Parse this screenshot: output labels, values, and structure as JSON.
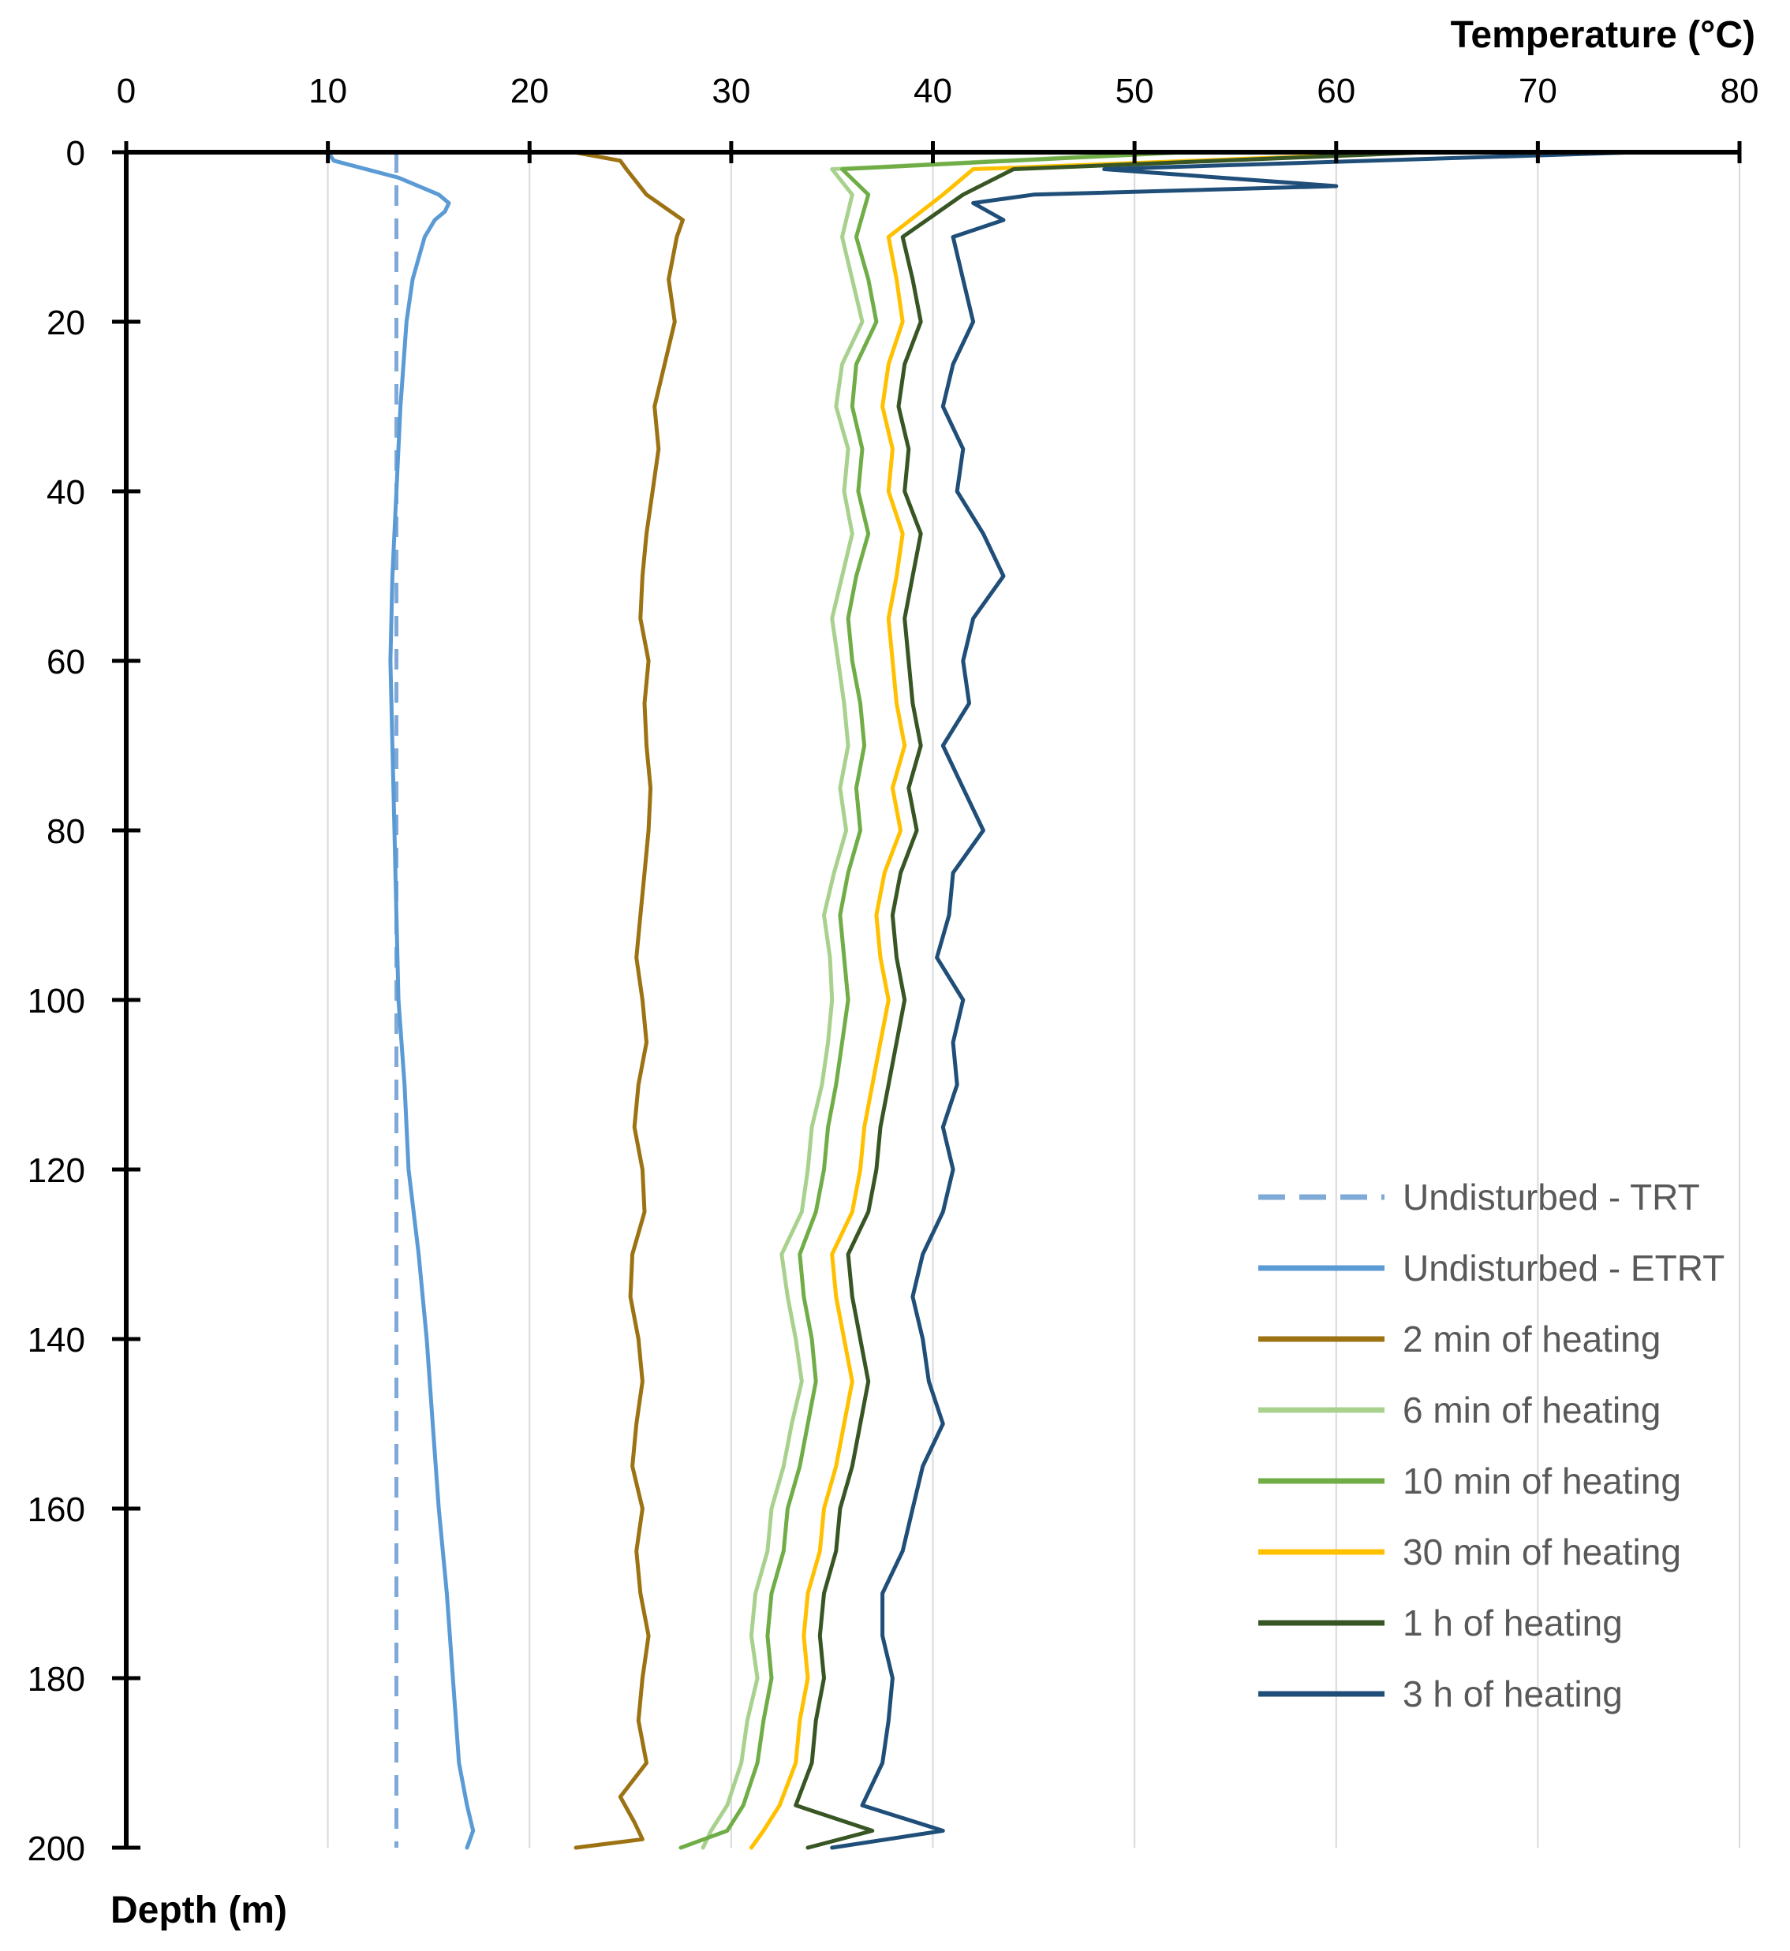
{
  "chart_data": {
    "type": "line",
    "orientation": "depth-profile",
    "xlabel": "Temperature (°C)",
    "ylabel": "Depth (m)",
    "xlim": [
      0,
      80
    ],
    "ylim": [
      0,
      200
    ],
    "x_ticks": [
      0,
      10,
      20,
      30,
      40,
      50,
      60,
      70,
      80
    ],
    "y_ticks": [
      0,
      20,
      40,
      60,
      80,
      100,
      120,
      140,
      160,
      180,
      200
    ],
    "grid": "vertical",
    "legend_position": "bottom-right",
    "series": [
      {
        "name": "Undisturbed - TRT",
        "color": "#7FA9D6",
        "dash": "dashed",
        "depth": [
          0,
          200
        ],
        "temperature": [
          13.4,
          13.4
        ]
      },
      {
        "name": "Undisturbed - ETRT",
        "color": "#5B9BD5",
        "dash": "solid",
        "depth": [
          0,
          1,
          3,
          5,
          6,
          7,
          8,
          10,
          15,
          20,
          30,
          40,
          50,
          60,
          70,
          80,
          90,
          100,
          110,
          120,
          130,
          140,
          150,
          160,
          170,
          180,
          190,
          195,
          198,
          200
        ],
        "temperature": [
          10.0,
          10.3,
          13.5,
          15.5,
          16.0,
          15.8,
          15.3,
          14.8,
          14.2,
          13.9,
          13.6,
          13.4,
          13.2,
          13.1,
          13.2,
          13.3,
          13.4,
          13.5,
          13.8,
          14.0,
          14.5,
          14.9,
          15.2,
          15.5,
          15.9,
          16.2,
          16.5,
          16.9,
          17.2,
          16.9
        ]
      },
      {
        "name": "2 min of heating",
        "color": "#9C7212",
        "dash": "solid",
        "depth": [
          0,
          1,
          2,
          5,
          8,
          10,
          15,
          20,
          25,
          30,
          35,
          40,
          45,
          50,
          55,
          60,
          65,
          70,
          75,
          80,
          85,
          90,
          95,
          100,
          105,
          110,
          115,
          120,
          125,
          130,
          135,
          140,
          145,
          150,
          155,
          160,
          165,
          170,
          175,
          180,
          185,
          190,
          194,
          197,
          199,
          200
        ],
        "temperature": [
          22.2,
          24.5,
          24.8,
          25.8,
          27.6,
          27.3,
          26.9,
          27.2,
          26.7,
          26.2,
          26.4,
          26.1,
          25.8,
          25.6,
          25.5,
          25.9,
          25.7,
          25.8,
          26.0,
          25.9,
          25.7,
          25.5,
          25.3,
          25.6,
          25.8,
          25.4,
          25.2,
          25.6,
          25.7,
          25.1,
          25.0,
          25.4,
          25.6,
          25.3,
          25.1,
          25.6,
          25.3,
          25.5,
          25.9,
          25.6,
          25.4,
          25.8,
          24.5,
          25.2,
          25.6,
          22.3
        ]
      },
      {
        "name": "6 min of heating",
        "color": "#A9D18E",
        "dash": "solid",
        "depth": [
          0,
          2,
          5,
          10,
          15,
          20,
          25,
          30,
          35,
          40,
          45,
          50,
          55,
          60,
          65,
          70,
          75,
          80,
          85,
          90,
          95,
          100,
          105,
          110,
          115,
          120,
          125,
          130,
          135,
          140,
          145,
          150,
          155,
          160,
          165,
          170,
          175,
          180,
          185,
          190,
          195,
          198,
          200
        ],
        "temperature": [
          52.0,
          35.0,
          36.0,
          35.5,
          36.0,
          36.5,
          35.5,
          35.2,
          35.8,
          35.6,
          36.0,
          35.5,
          35.0,
          35.3,
          35.6,
          35.8,
          35.4,
          35.7,
          35.1,
          34.6,
          34.9,
          35.0,
          34.8,
          34.5,
          34.0,
          33.8,
          33.5,
          32.5,
          32.8,
          33.2,
          33.5,
          33.0,
          32.6,
          32.0,
          31.8,
          31.2,
          31.0,
          31.3,
          30.8,
          30.5,
          29.8,
          29.0,
          28.6
        ]
      },
      {
        "name": "10 min of heating",
        "color": "#70AD47",
        "dash": "solid",
        "depth": [
          0,
          2,
          5,
          10,
          15,
          20,
          25,
          30,
          35,
          40,
          45,
          50,
          55,
          60,
          65,
          70,
          75,
          80,
          85,
          90,
          95,
          100,
          105,
          110,
          115,
          120,
          125,
          130,
          135,
          140,
          145,
          150,
          155,
          160,
          165,
          170,
          175,
          180,
          185,
          190,
          195,
          198,
          200
        ],
        "temperature": [
          52.5,
          35.5,
          36.8,
          36.2,
          36.8,
          37.2,
          36.2,
          36.0,
          36.5,
          36.3,
          36.8,
          36.2,
          35.8,
          36.0,
          36.4,
          36.6,
          36.2,
          36.4,
          35.8,
          35.4,
          35.6,
          35.8,
          35.5,
          35.2,
          34.8,
          34.6,
          34.2,
          33.4,
          33.6,
          34.0,
          34.2,
          33.8,
          33.4,
          32.8,
          32.6,
          32.0,
          31.8,
          32.0,
          31.6,
          31.3,
          30.6,
          29.8,
          27.5
        ]
      },
      {
        "name": "30 min of heating",
        "color": "#FFC000",
        "dash": "solid",
        "depth": [
          0,
          2,
          5,
          10,
          15,
          20,
          25,
          30,
          35,
          40,
          45,
          50,
          55,
          60,
          65,
          70,
          75,
          80,
          85,
          90,
          95,
          100,
          105,
          110,
          115,
          120,
          125,
          130,
          135,
          140,
          145,
          150,
          155,
          160,
          165,
          170,
          175,
          180,
          185,
          190,
          195,
          198,
          200
        ],
        "temperature": [
          64.0,
          42.0,
          40.5,
          37.8,
          38.2,
          38.5,
          37.8,
          37.5,
          38.0,
          37.8,
          38.5,
          38.2,
          37.8,
          38.0,
          38.2,
          38.6,
          38.0,
          38.4,
          37.6,
          37.2,
          37.4,
          37.8,
          37.4,
          37.0,
          36.6,
          36.4,
          36.0,
          35.0,
          35.2,
          35.6,
          36.0,
          35.6,
          35.2,
          34.6,
          34.4,
          33.8,
          33.6,
          33.8,
          33.4,
          33.2,
          32.4,
          31.6,
          31.0
        ]
      },
      {
        "name": "1 h of heating",
        "color": "#375623",
        "dash": "solid",
        "depth": [
          0,
          2,
          5,
          10,
          15,
          20,
          25,
          30,
          35,
          40,
          45,
          50,
          55,
          60,
          65,
          70,
          75,
          80,
          85,
          90,
          95,
          100,
          105,
          110,
          115,
          120,
          125,
          130,
          135,
          140,
          145,
          150,
          155,
          160,
          165,
          170,
          175,
          180,
          185,
          190,
          195,
          198,
          200
        ],
        "temperature": [
          64.5,
          44.0,
          41.5,
          38.5,
          39.0,
          39.4,
          38.6,
          38.3,
          38.8,
          38.6,
          39.4,
          39.0,
          38.6,
          38.8,
          39.0,
          39.4,
          38.8,
          39.2,
          38.4,
          38.0,
          38.2,
          38.6,
          38.2,
          37.8,
          37.4,
          37.2,
          36.8,
          35.8,
          36.0,
          36.4,
          36.8,
          36.4,
          36.0,
          35.4,
          35.2,
          34.6,
          34.4,
          34.6,
          34.2,
          34.0,
          33.2,
          37.0,
          33.8
        ]
      },
      {
        "name": "3 h of heating",
        "color": "#1F4E79",
        "dash": "solid",
        "depth": [
          0,
          2,
          4,
          5,
          6,
          8,
          10,
          15,
          20,
          25,
          30,
          35,
          40,
          45,
          50,
          55,
          60,
          65,
          70,
          75,
          80,
          85,
          90,
          95,
          100,
          105,
          110,
          115,
          120,
          125,
          130,
          135,
          140,
          145,
          150,
          155,
          160,
          165,
          170,
          175,
          180,
          185,
          190,
          195,
          198,
          200
        ],
        "temperature": [
          75.0,
          48.5,
          60.0,
          45.0,
          42.0,
          43.5,
          41.0,
          41.5,
          42.0,
          41.0,
          40.5,
          41.5,
          41.2,
          42.5,
          43.5,
          42.0,
          41.5,
          41.8,
          40.5,
          41.5,
          42.5,
          41.0,
          40.8,
          40.2,
          41.5,
          41.0,
          41.2,
          40.5,
          41.0,
          40.5,
          39.5,
          39.0,
          39.5,
          39.8,
          40.5,
          39.5,
          39.0,
          38.5,
          37.5,
          37.5,
          38.0,
          37.8,
          37.5,
          36.5,
          40.5,
          35.0
        ]
      }
    ]
  }
}
